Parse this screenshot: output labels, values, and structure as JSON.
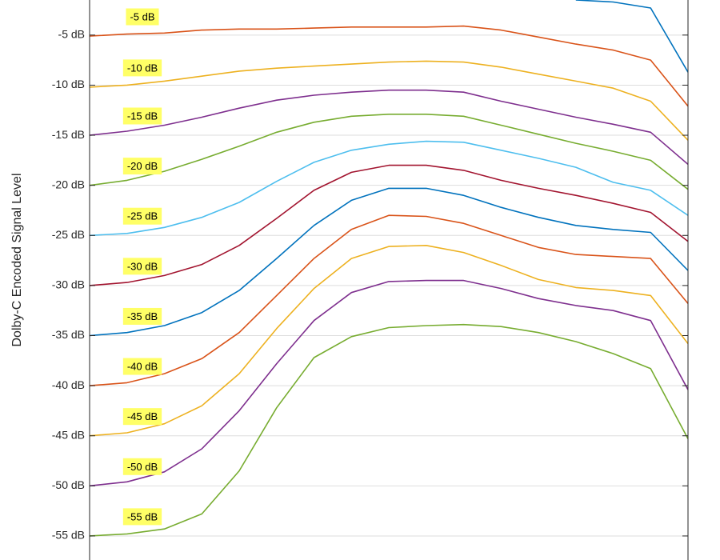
{
  "chart_data": {
    "type": "line",
    "y_label": "Dolby-C Encoded Signal Level",
    "categories": [
      null,
      null,
      null,
      null,
      null,
      null,
      null,
      null,
      null,
      null,
      null,
      null,
      null,
      null,
      null,
      null,
      null
    ],
    "ylim": [
      -57.4,
      -1.5
    ],
    "yticks": [
      {
        "value": -5,
        "label": "-5 dB"
      },
      {
        "value": -10,
        "label": "-10 dB"
      },
      {
        "value": -15,
        "label": "-15 dB"
      },
      {
        "value": -20,
        "label": "-20 dB"
      },
      {
        "value": -25,
        "label": "-25 dB"
      },
      {
        "value": -30,
        "label": "-30 dB"
      },
      {
        "value": -35,
        "label": "-35 dB"
      },
      {
        "value": -40,
        "label": "-40 dB"
      },
      {
        "value": -45,
        "label": "-45 dB"
      },
      {
        "value": -50,
        "label": "-50 dB"
      },
      {
        "value": -55,
        "label": "-55 dB"
      }
    ],
    "grid": true,
    "label_color": "#ffff66",
    "series": [
      {
        "color": "#0072bd",
        "values": [
          null,
          null,
          null,
          null,
          null,
          null,
          null,
          null,
          null,
          null,
          null,
          null,
          null,
          -1.5,
          -1.7,
          -2.3,
          -8.7
        ]
      },
      {
        "name": "-5 dB",
        "color": "#d95319",
        "values": [
          -5.1,
          -4.9,
          -4.8,
          -4.5,
          -4.4,
          -4.4,
          -4.3,
          -4.2,
          -4.2,
          -4.2,
          -4.1,
          -4.5,
          -5.2,
          -5.9,
          -6.5,
          -7.5,
          -12.1
        ]
      },
      {
        "name": "-10 dB",
        "color": "#edb120",
        "values": [
          -10.2,
          -10,
          -9.6,
          -9.1,
          -8.6,
          -8.3,
          -8.1,
          -7.9,
          -7.7,
          -7.6,
          -7.7,
          -8.2,
          -8.9,
          -9.6,
          -10.3,
          -11.6,
          -15.5
        ]
      },
      {
        "name": "-15 dB",
        "color": "#7e2f8e",
        "values": [
          -15,
          -14.6,
          -14,
          -13.2,
          -12.3,
          -11.5,
          -11,
          -10.7,
          -10.5,
          -10.5,
          -10.7,
          -11.6,
          -12.4,
          -13.2,
          -13.9,
          -14.7,
          -17.9
        ]
      },
      {
        "name": "-20 dB",
        "color": "#77ac30",
        "values": [
          -20,
          -19.5,
          -18.6,
          -17.4,
          -16.1,
          -14.7,
          -13.7,
          -13.1,
          -12.9,
          -12.9,
          -13.1,
          -14,
          -14.9,
          -15.8,
          -16.6,
          -17.5,
          -20.4
        ]
      },
      {
        "name": "-25 dB",
        "color": "#4dbeee",
        "values": [
          -25,
          -24.8,
          -24.2,
          -23.2,
          -21.7,
          -19.6,
          -17.7,
          -16.5,
          -15.9,
          -15.6,
          -15.7,
          -16.5,
          -17.3,
          -18.2,
          -19.7,
          -20.5,
          -23
        ]
      },
      {
        "name": "-30 dB",
        "color": "#a2142f",
        "values": [
          -30,
          -29.7,
          -29,
          -27.9,
          -26,
          -23.3,
          -20.5,
          -18.7,
          -18,
          -18,
          -18.5,
          -19.5,
          -20.3,
          -21,
          -21.8,
          -22.7,
          -25.6
        ]
      },
      {
        "name": "-35 dB",
        "color": "#0072bd",
        "values": [
          -35,
          -34.7,
          -34,
          -32.7,
          -30.5,
          -27.3,
          -24,
          -21.5,
          -20.3,
          -20.3,
          -21,
          -22.2,
          -23.2,
          -24,
          -24.4,
          -24.7,
          -28.5
        ]
      },
      {
        "name": "-40 dB",
        "color": "#d95319",
        "values": [
          -40,
          -39.7,
          -38.8,
          -37.3,
          -34.7,
          -31,
          -27.3,
          -24.4,
          -23,
          -23.1,
          -23.8,
          -25,
          -26.2,
          -26.9,
          -27.1,
          -27.3,
          -31.8
        ]
      },
      {
        "name": "-45 dB",
        "color": "#edb120",
        "values": [
          -45,
          -44.7,
          -43.8,
          -42,
          -38.8,
          -34.3,
          -30.3,
          -27.3,
          -26.1,
          -26,
          -26.7,
          -28,
          -29.4,
          -30.2,
          -30.5,
          -31,
          -35.8
        ]
      },
      {
        "name": "-50 dB",
        "color": "#7e2f8e",
        "values": [
          -50,
          -49.6,
          -48.6,
          -46.3,
          -42.5,
          -37.8,
          -33.5,
          -30.7,
          -29.6,
          -29.5,
          -29.5,
          -30.3,
          -31.3,
          -32,
          -32.5,
          -33.5,
          -40.4
        ]
      },
      {
        "name": "-55 dB",
        "color": "#77ac30",
        "values": [
          -55,
          -54.8,
          -54.3,
          -52.8,
          -48.5,
          -42.2,
          -37.2,
          -35.1,
          -34.2,
          -34,
          -33.9,
          -34.1,
          -34.7,
          -35.6,
          -36.8,
          -38.3,
          -45.3
        ]
      }
    ]
  }
}
